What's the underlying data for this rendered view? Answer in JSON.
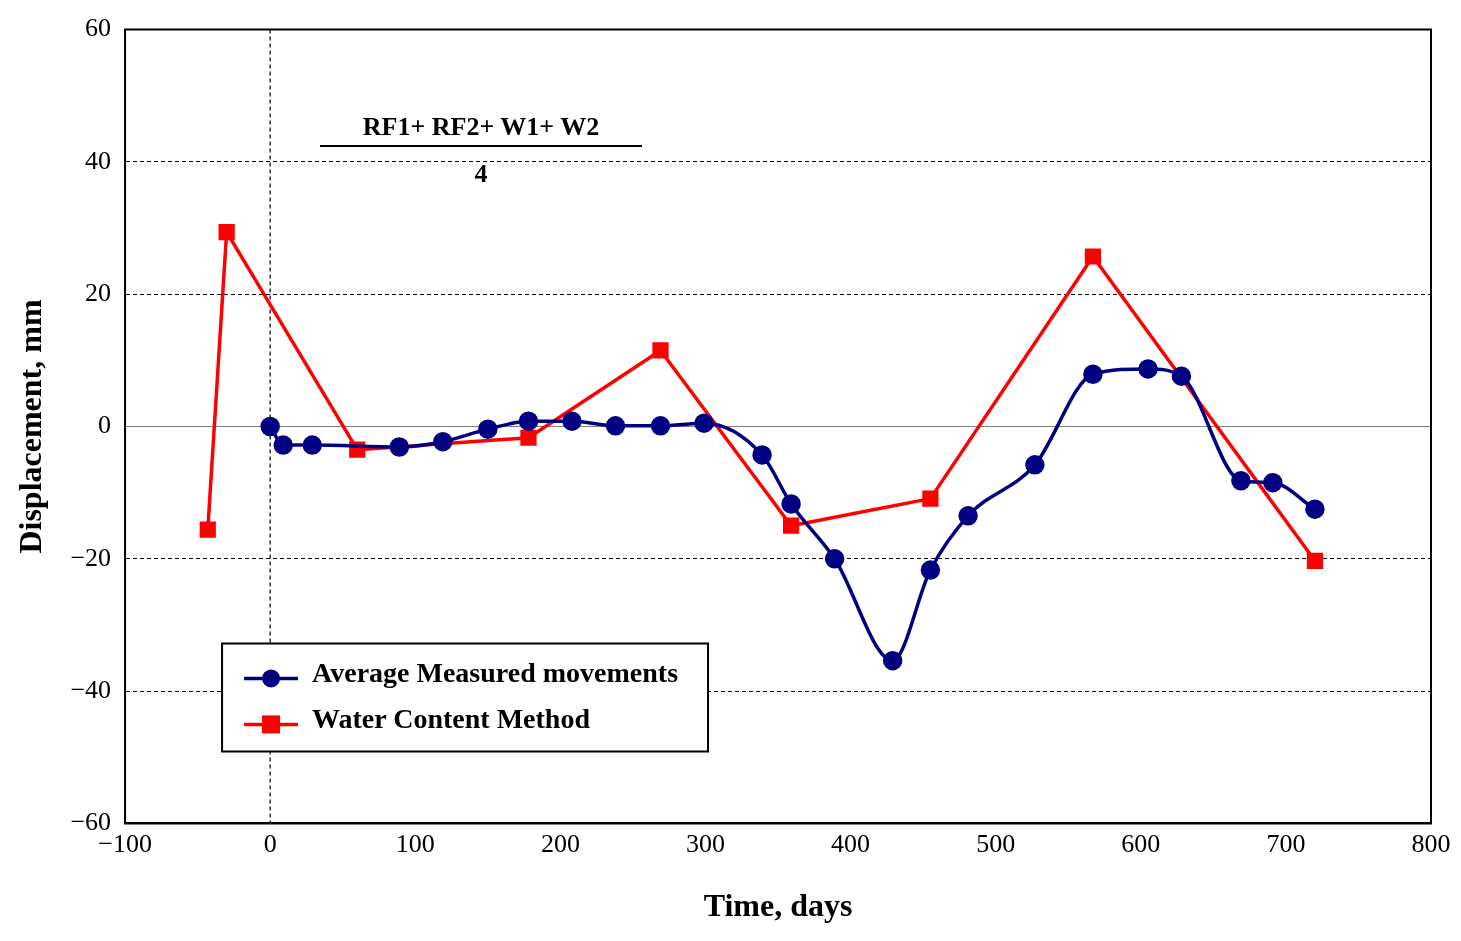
{
  "chart_data": {
    "type": "line",
    "xlabel": "Time, days",
    "ylabel": "Displacement, mm",
    "annotations": [
      "RF1+ RF2+ W1+ W2",
      "4"
    ],
    "xlim": [
      -100,
      800
    ],
    "xticks": [
      -100,
      0,
      100,
      200,
      300,
      400,
      500,
      600,
      700,
      800
    ],
    "ylim": [
      -60,
      60
    ],
    "yticks": [
      -60,
      -40,
      -20,
      0,
      20,
      40,
      60
    ],
    "grid": "y",
    "legend": "bottom left",
    "line_style": "solid",
    "ref_lines": [
      {
        "axis": "x",
        "value": 0,
        "label": null,
        "color": "#000000",
        "line_style": "dashed"
      },
      {
        "axis": "y",
        "value": 0,
        "label": null,
        "color": "#808080",
        "line_style": "solid"
      }
    ],
    "series": [
      {
        "name": "Average Measured movements",
        "color": "#000080",
        "marker": "circle",
        "x": [
          0,
          9,
          29,
          89,
          119,
          150,
          178,
          208,
          238,
          269,
          299,
          339,
          359,
          389,
          429,
          455,
          481,
          527,
          567,
          605,
          628,
          669,
          691,
          720
        ],
        "values": [
          0,
          -2.8,
          -2.8,
          -3.1,
          -2.3,
          -0.4,
          0.8,
          0.8,
          0.1,
          0.1,
          0.5,
          -4.3,
          -11.7,
          -20,
          -35.4,
          -21.7,
          -13.5,
          -5.8,
          7.9,
          8.7,
          7.6,
          -8.2,
          -8.5,
          -12.5
        ]
      },
      {
        "name": "Water Content Method",
        "color": "#ff0000",
        "marker": "square",
        "x": [
          -43,
          -30,
          60,
          178,
          269,
          359,
          455,
          567,
          720
        ],
        "values": [
          -15.6,
          29.4,
          -3.5,
          -1.7,
          11.5,
          -15,
          -10.9,
          25.7,
          -20.3
        ]
      }
    ]
  }
}
